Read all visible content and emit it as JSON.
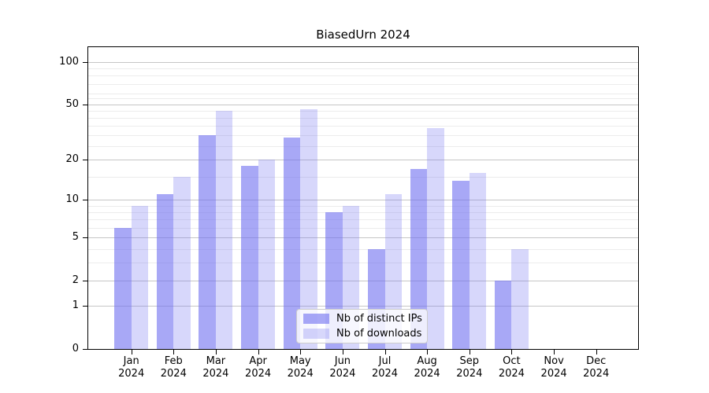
{
  "chart_data": {
    "type": "bar",
    "title": "BiasedUrn 2024",
    "categories": [
      "Jan 2024",
      "Feb 2024",
      "Mar 2024",
      "Apr 2024",
      "May 2024",
      "Jun 2024",
      "Jul 2024",
      "Aug 2024",
      "Sep 2024",
      "Oct 2024",
      "Nov 2024",
      "Dec 2024"
    ],
    "series": [
      {
        "name": "Nb of distinct IPs",
        "values": [
          6,
          11,
          30,
          18,
          29,
          8,
          4,
          17,
          14,
          2,
          0,
          0
        ],
        "color": "rgba(110,110,240,0.6)"
      },
      {
        "name": "Nb of downloads",
        "values": [
          9,
          15,
          45,
          20,
          46,
          9,
          11,
          34,
          16,
          4,
          0,
          0
        ],
        "color": "rgba(110,110,240,0.28)"
      }
    ],
    "xlabel": "",
    "ylabel": "",
    "yscale": "log1p",
    "ylim": [
      0,
      127
    ],
    "y_tick_values": [
      100,
      50,
      20,
      10,
      5,
      2,
      1,
      0
    ],
    "y_tick_labels": [
      "100",
      "50",
      "20",
      "10",
      "5",
      "2",
      "1",
      "0"
    ],
    "y_minor_gridlines": [
      3,
      4,
      6,
      7,
      8,
      9,
      15,
      25,
      30,
      35,
      40,
      45,
      55,
      60,
      70,
      80,
      90
    ],
    "grid": true,
    "legend_position": "lower center"
  },
  "colors": {
    "grid_major": "#c6c6c6",
    "grid_minor": "#ececec",
    "axis": "#000000",
    "background": "#ffffff"
  }
}
